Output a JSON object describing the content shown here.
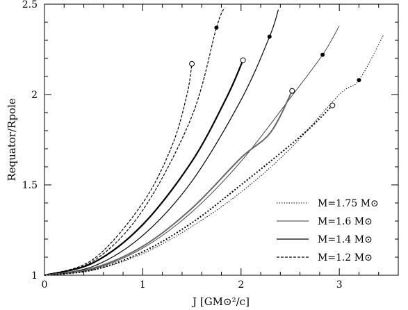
{
  "chart_data": {
    "type": "line",
    "xlabel": "J [GM⊙²/c]",
    "ylabel": "Requator/Rpole",
    "xlim": [
      0,
      3.6
    ],
    "ylim": [
      1,
      2.5
    ],
    "x_ticks": [
      "0",
      "1",
      "2",
      "3"
    ],
    "y_ticks": [
      "1",
      "1.5",
      "2",
      "2.5"
    ],
    "legend_placement": "bottom-right",
    "series": [
      {
        "name": "M=1.75 M⊙",
        "style": "dotted",
        "points": [
          [
            0,
            1
          ],
          [
            0.5,
            1.03
          ],
          [
            1,
            1.12
          ],
          [
            1.5,
            1.27
          ],
          [
            2,
            1.46
          ],
          [
            2.5,
            1.7
          ],
          [
            3,
            2
          ],
          [
            3.2,
            2.08
          ],
          [
            3.45,
            2.33
          ]
        ],
        "marker_filled": [
          3.2,
          2.08
        ]
      },
      {
        "name": "M=1.6 M⊙",
        "style": "thin",
        "points": [
          [
            0,
            1
          ],
          [
            0.5,
            1.035
          ],
          [
            1,
            1.15
          ],
          [
            1.5,
            1.35
          ],
          [
            2,
            1.63
          ],
          [
            2.5,
            1.98
          ],
          [
            2.83,
            2.22
          ],
          [
            3,
            2.38
          ]
        ],
        "marker_filled": [
          2.83,
          2.22
        ]
      },
      {
        "name": "M=1.4 M⊙",
        "style": "solid",
        "points": [
          [
            0,
            1
          ],
          [
            0.5,
            1.05
          ],
          [
            1,
            1.22
          ],
          [
            1.5,
            1.52
          ],
          [
            2,
            1.97
          ],
          [
            2.29,
            2.32
          ],
          [
            2.38,
            2.47
          ]
        ],
        "marker_filled": [
          2.29,
          2.32
        ]
      },
      {
        "name": "M=1.2 M⊙",
        "style": "dashed",
        "points": [
          [
            0,
            1
          ],
          [
            0.5,
            1.08
          ],
          [
            1,
            1.36
          ],
          [
            1.5,
            1.88
          ],
          [
            1.75,
            2.37
          ],
          [
            1.83,
            2.48
          ]
        ],
        "marker_filled": [
          1.75,
          2.37
        ]
      }
    ],
    "extra_series": [
      {
        "style": "dashed",
        "points": [
          [
            0,
            1
          ],
          [
            0.5,
            1.09
          ],
          [
            1,
            1.4
          ],
          [
            1.3,
            1.72
          ],
          [
            1.45,
            2
          ],
          [
            1.5,
            2.17
          ]
        ],
        "marker_open": [
          1.5,
          2.17
        ]
      },
      {
        "style": "thick",
        "points": [
          [
            0,
            1
          ],
          [
            0.5,
            1.07
          ],
          [
            1,
            1.28
          ],
          [
            1.5,
            1.63
          ],
          [
            1.85,
            1.98
          ],
          [
            2.02,
            2.19
          ]
        ],
        "marker_open": [
          2.02,
          2.19
        ]
      },
      {
        "style": "gray",
        "points": [
          [
            0,
            1
          ],
          [
            0.5,
            1.04
          ],
          [
            1,
            1.16
          ],
          [
            1.5,
            1.37
          ],
          [
            2,
            1.65
          ],
          [
            2.3,
            1.79
          ],
          [
            2.52,
            2.02
          ]
        ],
        "marker_open": [
          2.52,
          2.02
        ]
      },
      {
        "style": "dotted-thick",
        "points": [
          [
            0,
            1
          ],
          [
            0.5,
            1.03
          ],
          [
            1,
            1.13
          ],
          [
            1.5,
            1.29
          ],
          [
            2,
            1.5
          ],
          [
            2.5,
            1.72
          ],
          [
            2.75,
            1.84
          ],
          [
            2.93,
            1.94
          ]
        ],
        "marker_open": [
          2.93,
          1.94
        ]
      }
    ]
  }
}
